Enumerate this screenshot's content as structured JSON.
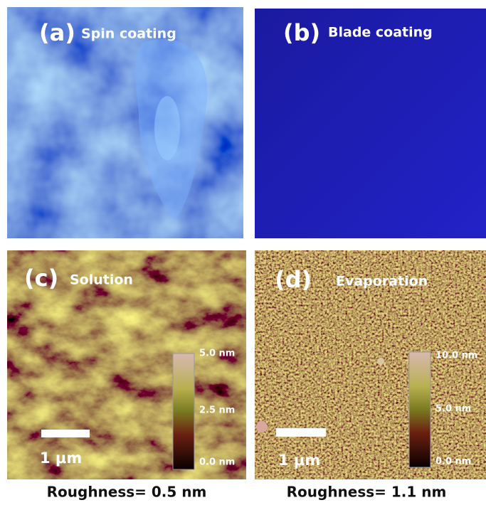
{
  "panels": [
    {
      "label": "(a)",
      "title": "Spin coating"
    },
    {
      "label": "(b)",
      "title": "Blade coating"
    },
    {
      "label": "(c)",
      "title": "Solution",
      "colorbar": [
        "5.0 nm",
        "2.5 nm",
        "0.0 nm"
      ],
      "scale_bar": "1 μm",
      "caption": "Roughness= 0.5 nm"
    },
    {
      "label": "(d)",
      "title": "Evaporation",
      "colorbar": [
        "10.0 nm",
        "5.0 nm",
        "0.0 nm"
      ],
      "scale_bar": "1 μm",
      "caption": "Roughness= 1.1 nm"
    }
  ]
}
